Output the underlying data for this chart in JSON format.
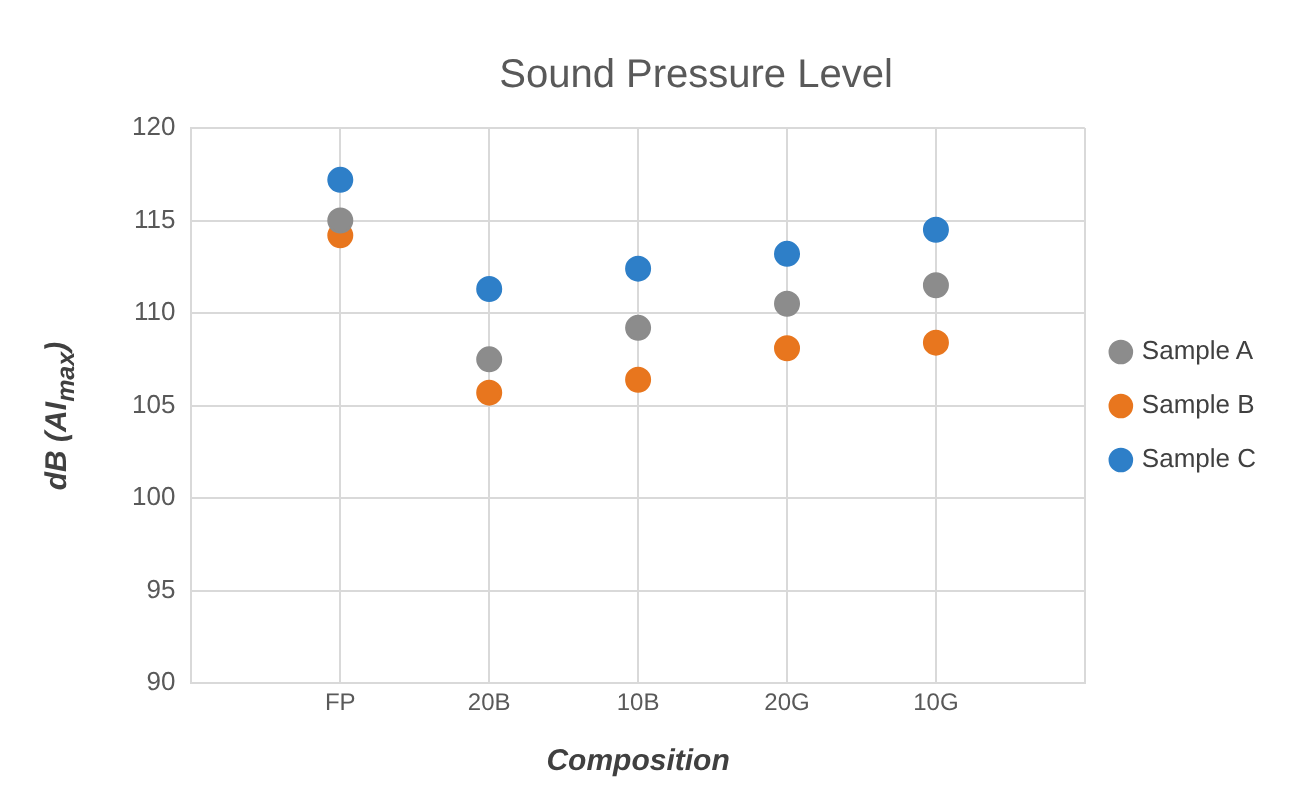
{
  "chart_data": {
    "type": "scatter",
    "title": "Sound Pressure Level",
    "xlabel": "Composition",
    "ylabel": "dB (AI$_{max}$)",
    "categories": [
      null,
      "FP",
      "20B",
      "10B",
      "20G",
      "10G",
      null
    ],
    "ylim": [
      90,
      120
    ],
    "yticks": [
      90,
      95,
      100,
      105,
      110,
      115,
      120
    ],
    "series": [
      {
        "name": "Sample A",
        "color": "#8c8c8c",
        "values": [
          null,
          115.0,
          107.5,
          109.2,
          110.5,
          111.5,
          null
        ]
      },
      {
        "name": "Sample B",
        "color": "#e8761e",
        "values": [
          null,
          114.2,
          105.7,
          106.4,
          108.1,
          108.4,
          null
        ]
      },
      {
        "name": "Sample C",
        "color": "#2e7fc8",
        "values": [
          null,
          117.2,
          111.3,
          112.4,
          113.2,
          114.5,
          null
        ]
      }
    ],
    "grid": true,
    "legend": "right",
    "marker": "circle"
  }
}
